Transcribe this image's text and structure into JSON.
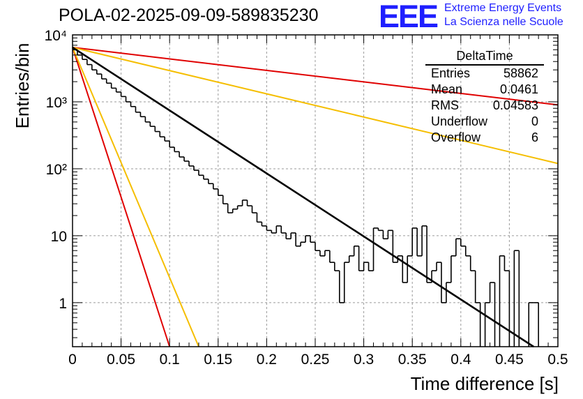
{
  "title": "POLA-02-2025-09-09-589835230",
  "brand": {
    "logo": "EEE",
    "line1": "Extreme Energy Events",
    "line2": "La Scienza nelle Scuole",
    "color": "#1f1fff"
  },
  "stats": {
    "title": "DeltaTime",
    "rows": [
      {
        "label": "Entries",
        "value": "58862"
      },
      {
        "label": "Mean",
        "value": "0.0461"
      },
      {
        "label": "RMS",
        "value": "0.04583"
      },
      {
        "label": "Underflow",
        "value": "0"
      },
      {
        "label": "Overflow",
        "value": "6"
      }
    ]
  },
  "chart_data": {
    "type": "histogram",
    "title": "POLA-02-2025-09-09-589835230",
    "xlabel": "Time difference [s]",
    "ylabel": "Entries/bin",
    "xlim": [
      0,
      0.5
    ],
    "ylim": [
      0.22,
      10000
    ],
    "yscale": "log",
    "grid": true,
    "xticks": [
      0,
      0.05,
      0.1,
      0.15,
      0.2,
      0.25,
      0.3,
      0.35,
      0.4,
      0.45,
      0.5
    ],
    "xtick_labels": [
      "0",
      "0.05",
      "0.1",
      "0.15",
      "0.2",
      "0.25",
      "0.3",
      "0.35",
      "0.4",
      "0.45",
      "0.5"
    ],
    "yticks": [
      1,
      10,
      100,
      1000,
      10000
    ],
    "ytick_labels": [
      "1",
      "10",
      "10²",
      "10³",
      "10⁴"
    ],
    "histogram": {
      "name": "DeltaTime",
      "color": "#000000",
      "bin_width": 0.005,
      "bin_start": 0,
      "values": [
        6000,
        5000,
        4300,
        3600,
        3000,
        2600,
        2200,
        1900,
        1600,
        1400,
        1200,
        1000,
        850,
        700,
        600,
        500,
        430,
        360,
        300,
        260,
        210,
        180,
        150,
        130,
        110,
        95,
        80,
        70,
        60,
        50,
        40,
        30,
        22,
        25,
        28,
        34,
        28,
        22,
        16,
        14,
        12,
        11,
        14,
        11,
        9,
        11,
        7,
        8,
        10,
        8,
        6,
        5,
        6,
        4,
        3,
        1.0,
        4,
        5,
        7,
        3,
        4,
        3,
        13,
        12,
        9,
        12,
        4,
        5,
        2,
        5,
        13,
        5,
        14,
        2,
        3,
        4,
        1,
        2,
        5,
        9,
        7,
        5,
        3,
        1,
        0,
        1,
        2,
        0,
        5,
        3,
        0,
        6,
        0,
        0,
        1,
        1,
        0,
        0,
        0,
        0
      ]
    },
    "fit": {
      "name": "exponential fit",
      "color": "#000000",
      "y0": 6500,
      "y_end": 0.2,
      "x_end": 0.475
    },
    "lines": [
      {
        "name": "slow-component-red",
        "color": "#e00000",
        "points": [
          [
            0,
            6500
          ],
          [
            0.5,
            900
          ]
        ]
      },
      {
        "name": "slow-component-yellow",
        "color": "#f5be00",
        "points": [
          [
            0,
            6500
          ],
          [
            0.5,
            120
          ]
        ]
      },
      {
        "name": "fast-component-red",
        "color": "#e00000",
        "points": [
          [
            0,
            6500
          ],
          [
            0.1,
            0.22
          ]
        ]
      },
      {
        "name": "fast-component-yellow",
        "color": "#f5be00",
        "points": [
          [
            0,
            6500
          ],
          [
            0.13,
            0.22
          ]
        ]
      }
    ]
  }
}
